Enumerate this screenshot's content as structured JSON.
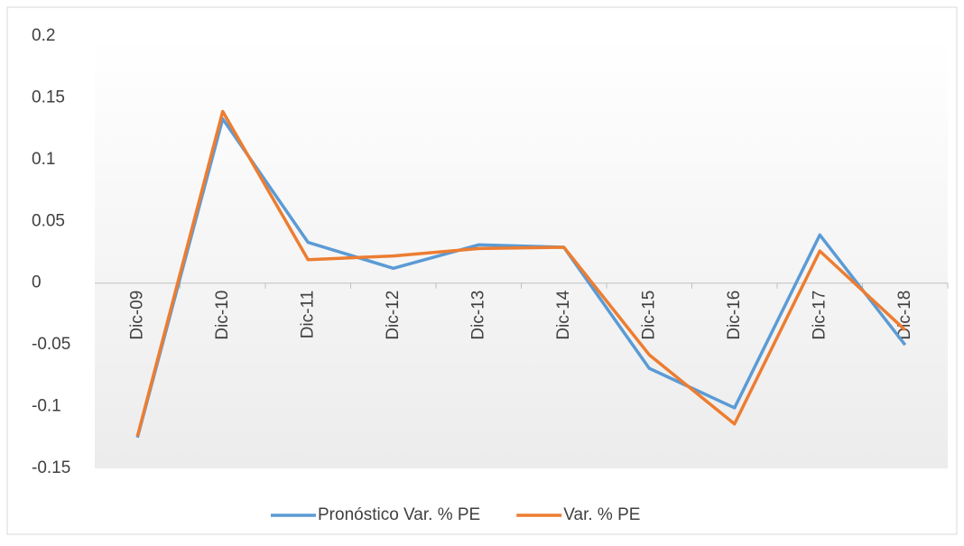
{
  "chart_data": {
    "type": "line",
    "categories": [
      "Dic-09",
      "Dic-10",
      "Dic-11",
      "Dic-12",
      "Dic-13",
      "Dic-14",
      "Dic-15",
      "Dic-16",
      "Dic-17",
      "Dic-18"
    ],
    "series": [
      {
        "name": "Pronóstico Var. % PE",
        "color": "#5b9bd5",
        "values": [
          -0.125,
          0.133,
          0.033,
          0.012,
          0.031,
          0.029,
          -0.069,
          -0.101,
          0.039,
          -0.05
        ]
      },
      {
        "name": "Var. % PE",
        "color": "#ed7d31",
        "values": [
          -0.124,
          0.139,
          0.019,
          0.022,
          0.028,
          0.029,
          -0.058,
          -0.114,
          0.026,
          -0.038
        ]
      }
    ],
    "ylim": [
      -0.15,
      0.2
    ],
    "yticks": [
      -0.15,
      -0.1,
      -0.05,
      0,
      0.05,
      0.1,
      0.15,
      0.2
    ],
    "legend": "bottom"
  }
}
